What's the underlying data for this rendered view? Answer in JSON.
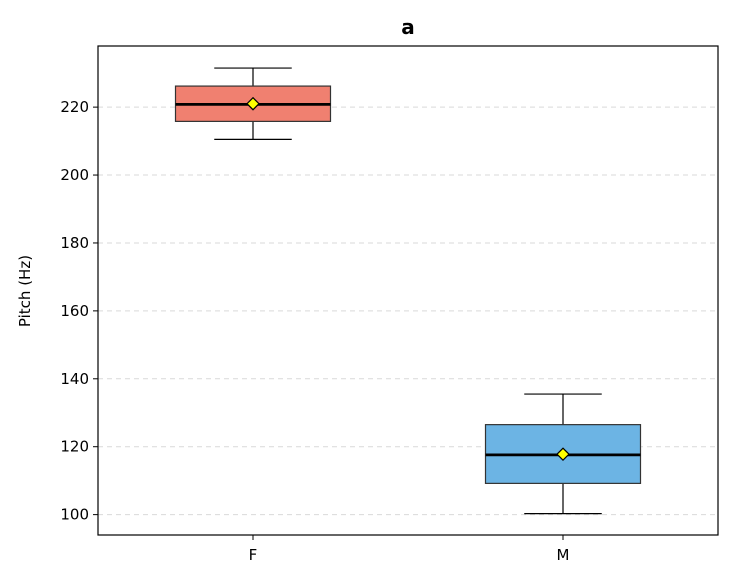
{
  "chart_data": {
    "type": "box",
    "title": "a",
    "xlabel": "",
    "ylabel": "Pitch (Hz)",
    "ylim": [
      94,
      238
    ],
    "yticks": [
      100,
      120,
      140,
      160,
      180,
      200,
      220
    ],
    "grid": "horizontal dashed",
    "categories": [
      "F",
      "M"
    ],
    "boxes": [
      {
        "category": "F",
        "whisker_low": 210.5,
        "q1": 215.8,
        "median": 220.8,
        "q3": 226.2,
        "whisker_high": 231.5,
        "mean": 221.0,
        "color": "#f08070"
      },
      {
        "category": "M",
        "whisker_low": 100.3,
        "q1": 109.2,
        "median": 117.6,
        "q3": 126.5,
        "whisker_high": 135.5,
        "mean": 117.8,
        "color": "#6cb4e4"
      }
    ],
    "mean_marker_color": "#ffff00"
  }
}
